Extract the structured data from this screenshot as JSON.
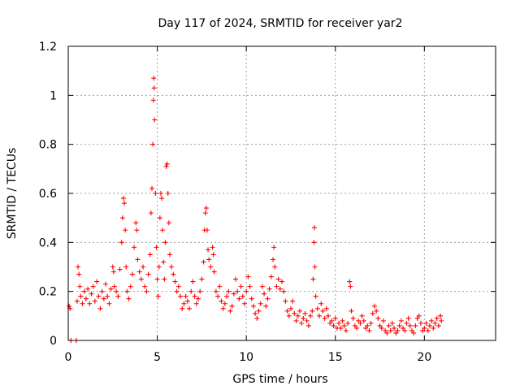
{
  "chart_data": {
    "type": "scatter",
    "title": "Day 117 of 2024, SRMTID for receiver yar2",
    "xlabel": "GPS time / hours",
    "ylabel": "SRMTID / TECUs",
    "xlim": [
      0,
      24
    ],
    "ylim": [
      0,
      1.2
    ],
    "x_ticks": [
      0,
      5,
      10,
      15,
      20
    ],
    "y_ticks": [
      0,
      0.2,
      0.4,
      0.6,
      0.8,
      1,
      1.2
    ],
    "x_tick_labels": [
      "0",
      "5",
      "10",
      "15",
      "20"
    ],
    "y_tick_labels": [
      "0",
      "0.2",
      "0.4",
      "0.6",
      "0.8",
      "1",
      "1.2"
    ],
    "grid": true,
    "marker": "+",
    "series": [
      {
        "name": "SRMTID",
        "color": "#ff0000",
        "points": [
          [
            0.05,
            0.14
          ],
          [
            0.1,
            0.13
          ],
          [
            0.15,
            0.0
          ],
          [
            0.45,
            0.0
          ],
          [
            0.5,
            0.16
          ],
          [
            0.55,
            0.3
          ],
          [
            0.6,
            0.27
          ],
          [
            0.65,
            0.22
          ],
          [
            0.7,
            0.18
          ],
          [
            0.8,
            0.15
          ],
          [
            0.9,
            0.2
          ],
          [
            1.0,
            0.17
          ],
          [
            1.1,
            0.21
          ],
          [
            1.2,
            0.15
          ],
          [
            1.3,
            0.19
          ],
          [
            1.4,
            0.22
          ],
          [
            1.5,
            0.16
          ],
          [
            1.6,
            0.24
          ],
          [
            1.7,
            0.18
          ],
          [
            1.8,
            0.13
          ],
          [
            1.9,
            0.2
          ],
          [
            2.0,
            0.17
          ],
          [
            2.1,
            0.23
          ],
          [
            2.2,
            0.18
          ],
          [
            2.3,
            0.15
          ],
          [
            2.4,
            0.21
          ],
          [
            2.5,
            0.3
          ],
          [
            2.55,
            0.28
          ],
          [
            2.6,
            0.22
          ],
          [
            2.7,
            0.2
          ],
          [
            2.8,
            0.18
          ],
          [
            2.9,
            0.29
          ],
          [
            3.0,
            0.4
          ],
          [
            3.05,
            0.5
          ],
          [
            3.1,
            0.58
          ],
          [
            3.15,
            0.56
          ],
          [
            3.2,
            0.45
          ],
          [
            3.25,
            0.3
          ],
          [
            3.3,
            0.2
          ],
          [
            3.4,
            0.17
          ],
          [
            3.5,
            0.22
          ],
          [
            3.6,
            0.27
          ],
          [
            3.7,
            0.38
          ],
          [
            3.8,
            0.48
          ],
          [
            3.85,
            0.45
          ],
          [
            3.9,
            0.33
          ],
          [
            4.0,
            0.28
          ],
          [
            4.1,
            0.25
          ],
          [
            4.2,
            0.3
          ],
          [
            4.3,
            0.22
          ],
          [
            4.4,
            0.2
          ],
          [
            4.5,
            0.27
          ],
          [
            4.6,
            0.35
          ],
          [
            4.65,
            0.52
          ],
          [
            4.7,
            0.62
          ],
          [
            4.75,
            0.8
          ],
          [
            4.78,
            0.98
          ],
          [
            4.8,
            1.07
          ],
          [
            4.82,
            1.03
          ],
          [
            4.85,
            0.9
          ],
          [
            4.9,
            0.6
          ],
          [
            4.95,
            0.38
          ],
          [
            5.0,
            0.25
          ],
          [
            5.05,
            0.18
          ],
          [
            5.1,
            0.3
          ],
          [
            5.15,
            0.5
          ],
          [
            5.2,
            0.6
          ],
          [
            5.25,
            0.58
          ],
          [
            5.3,
            0.45
          ],
          [
            5.35,
            0.32
          ],
          [
            5.4,
            0.25
          ],
          [
            5.45,
            0.4
          ],
          [
            5.5,
            0.71
          ],
          [
            5.55,
            0.72
          ],
          [
            5.6,
            0.6
          ],
          [
            5.65,
            0.48
          ],
          [
            5.7,
            0.35
          ],
          [
            5.8,
            0.3
          ],
          [
            5.9,
            0.27
          ],
          [
            6.0,
            0.24
          ],
          [
            6.1,
            0.2
          ],
          [
            6.2,
            0.22
          ],
          [
            6.3,
            0.18
          ],
          [
            6.4,
            0.13
          ],
          [
            6.5,
            0.15
          ],
          [
            6.6,
            0.18
          ],
          [
            6.7,
            0.16
          ],
          [
            6.8,
            0.13
          ],
          [
            6.9,
            0.2
          ],
          [
            7.0,
            0.24
          ],
          [
            7.1,
            0.18
          ],
          [
            7.2,
            0.15
          ],
          [
            7.3,
            0.17
          ],
          [
            7.4,
            0.2
          ],
          [
            7.5,
            0.25
          ],
          [
            7.6,
            0.32
          ],
          [
            7.65,
            0.45
          ],
          [
            7.7,
            0.52
          ],
          [
            7.75,
            0.54
          ],
          [
            7.8,
            0.45
          ],
          [
            7.85,
            0.37
          ],
          [
            7.9,
            0.33
          ],
          [
            8.0,
            0.3
          ],
          [
            8.1,
            0.38
          ],
          [
            8.15,
            0.35
          ],
          [
            8.2,
            0.28
          ],
          [
            8.3,
            0.2
          ],
          [
            8.4,
            0.18
          ],
          [
            8.5,
            0.22
          ],
          [
            8.6,
            0.16
          ],
          [
            8.7,
            0.13
          ],
          [
            8.8,
            0.15
          ],
          [
            8.9,
            0.18
          ],
          [
            9.0,
            0.2
          ],
          [
            9.1,
            0.12
          ],
          [
            9.2,
            0.14
          ],
          [
            9.3,
            0.19
          ],
          [
            9.4,
            0.25
          ],
          [
            9.5,
            0.2
          ],
          [
            9.6,
            0.17
          ],
          [
            9.7,
            0.22
          ],
          [
            9.8,
            0.18
          ],
          [
            9.9,
            0.15
          ],
          [
            10.0,
            0.2
          ],
          [
            10.1,
            0.26
          ],
          [
            10.2,
            0.22
          ],
          [
            10.3,
            0.17
          ],
          [
            10.4,
            0.14
          ],
          [
            10.5,
            0.11
          ],
          [
            10.6,
            0.09
          ],
          [
            10.7,
            0.12
          ],
          [
            10.8,
            0.15
          ],
          [
            10.9,
            0.22
          ],
          [
            11.0,
            0.19
          ],
          [
            11.1,
            0.14
          ],
          [
            11.2,
            0.17
          ],
          [
            11.3,
            0.21
          ],
          [
            11.4,
            0.26
          ],
          [
            11.5,
            0.33
          ],
          [
            11.55,
            0.38
          ],
          [
            11.6,
            0.3
          ],
          [
            11.7,
            0.22
          ],
          [
            11.8,
            0.25
          ],
          [
            11.9,
            0.21
          ],
          [
            12.0,
            0.24
          ],
          [
            12.1,
            0.2
          ],
          [
            12.2,
            0.16
          ],
          [
            12.3,
            0.12
          ],
          [
            12.4,
            0.1
          ],
          [
            12.5,
            0.13
          ],
          [
            12.6,
            0.16
          ],
          [
            12.7,
            0.11
          ],
          [
            12.8,
            0.08
          ],
          [
            12.9,
            0.1
          ],
          [
            13.0,
            0.12
          ],
          [
            13.1,
            0.07
          ],
          [
            13.2,
            0.09
          ],
          [
            13.3,
            0.11
          ],
          [
            13.4,
            0.08
          ],
          [
            13.5,
            0.06
          ],
          [
            13.6,
            0.1
          ],
          [
            13.7,
            0.12
          ],
          [
            13.75,
            0.25
          ],
          [
            13.8,
            0.4
          ],
          [
            13.82,
            0.46
          ],
          [
            13.85,
            0.3
          ],
          [
            13.9,
            0.18
          ],
          [
            14.0,
            0.13
          ],
          [
            14.1,
            0.1
          ],
          [
            14.2,
            0.15
          ],
          [
            14.3,
            0.12
          ],
          [
            14.4,
            0.09
          ],
          [
            14.5,
            0.13
          ],
          [
            14.6,
            0.1
          ],
          [
            14.7,
            0.07
          ],
          [
            14.8,
            0.08
          ],
          [
            14.9,
            0.06
          ],
          [
            15.0,
            0.09
          ],
          [
            15.1,
            0.05
          ],
          [
            15.2,
            0.07
          ],
          [
            15.3,
            0.05
          ],
          [
            15.4,
            0.08
          ],
          [
            15.5,
            0.06
          ],
          [
            15.6,
            0.04
          ],
          [
            15.7,
            0.07
          ],
          [
            15.8,
            0.24
          ],
          [
            15.85,
            0.22
          ],
          [
            15.9,
            0.12
          ],
          [
            16.0,
            0.09
          ],
          [
            16.1,
            0.06
          ],
          [
            16.2,
            0.05
          ],
          [
            16.3,
            0.08
          ],
          [
            16.4,
            0.07
          ],
          [
            16.5,
            0.1
          ],
          [
            16.6,
            0.08
          ],
          [
            16.7,
            0.05
          ],
          [
            16.8,
            0.06
          ],
          [
            16.9,
            0.04
          ],
          [
            17.0,
            0.07
          ],
          [
            17.1,
            0.11
          ],
          [
            17.2,
            0.14
          ],
          [
            17.3,
            0.12
          ],
          [
            17.4,
            0.09
          ],
          [
            17.5,
            0.06
          ],
          [
            17.6,
            0.05
          ],
          [
            17.7,
            0.08
          ],
          [
            17.8,
            0.04
          ],
          [
            17.9,
            0.03
          ],
          [
            18.0,
            0.06
          ],
          [
            18.1,
            0.04
          ],
          [
            18.2,
            0.07
          ],
          [
            18.3,
            0.05
          ],
          [
            18.4,
            0.03
          ],
          [
            18.5,
            0.04
          ],
          [
            18.6,
            0.06
          ],
          [
            18.7,
            0.08
          ],
          [
            18.8,
            0.05
          ],
          [
            18.9,
            0.04
          ],
          [
            19.0,
            0.07
          ],
          [
            19.1,
            0.09
          ],
          [
            19.2,
            0.06
          ],
          [
            19.3,
            0.04
          ],
          [
            19.4,
            0.03
          ],
          [
            19.5,
            0.06
          ],
          [
            19.6,
            0.09
          ],
          [
            19.7,
            0.1
          ],
          [
            19.8,
            0.07
          ],
          [
            19.9,
            0.04
          ],
          [
            20.0,
            0.05
          ],
          [
            20.1,
            0.07
          ],
          [
            20.2,
            0.04
          ],
          [
            20.3,
            0.06
          ],
          [
            20.4,
            0.08
          ],
          [
            20.5,
            0.05
          ],
          [
            20.6,
            0.07
          ],
          [
            20.7,
            0.09
          ],
          [
            20.8,
            0.06
          ],
          [
            20.9,
            0.1
          ],
          [
            20.95,
            0.08
          ]
        ]
      }
    ]
  }
}
